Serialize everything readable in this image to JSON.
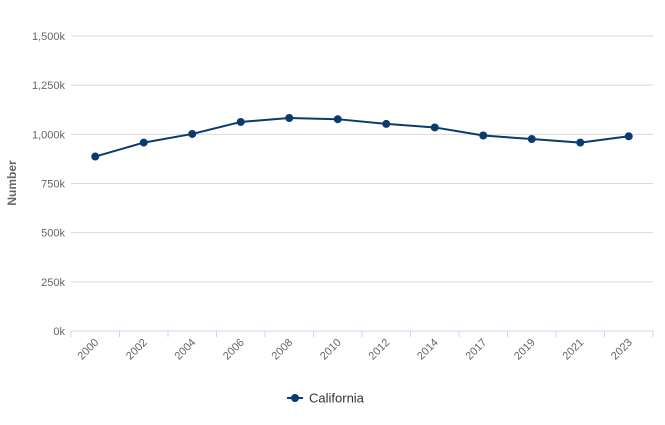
{
  "chart_data": {
    "type": "line",
    "title": "",
    "xlabel": "",
    "ylabel": "Number",
    "ylim": [
      0,
      1500000
    ],
    "yticks": [
      {
        "value": 0,
        "label": "0k"
      },
      {
        "value": 250000,
        "label": "250k"
      },
      {
        "value": 500000,
        "label": "500k"
      },
      {
        "value": 750000,
        "label": "750k"
      },
      {
        "value": 1000000,
        "label": "1,000k"
      },
      {
        "value": 1250000,
        "label": "1,250k"
      },
      {
        "value": 1500000,
        "label": "1,500k"
      }
    ],
    "categories": [
      "2000",
      "2002",
      "2004",
      "2006",
      "2008",
      "2010",
      "2012",
      "2014",
      "2017",
      "2019",
      "2021",
      "2023"
    ],
    "series": [
      {
        "name": "California",
        "color": "#0b3a6e",
        "values": [
          887000,
          958000,
          1002000,
          1063000,
          1083000,
          1077000,
          1053000,
          1035000,
          994000,
          976000,
          958000,
          990000
        ]
      }
    ],
    "grid": true,
    "legend": "bottom-center"
  }
}
